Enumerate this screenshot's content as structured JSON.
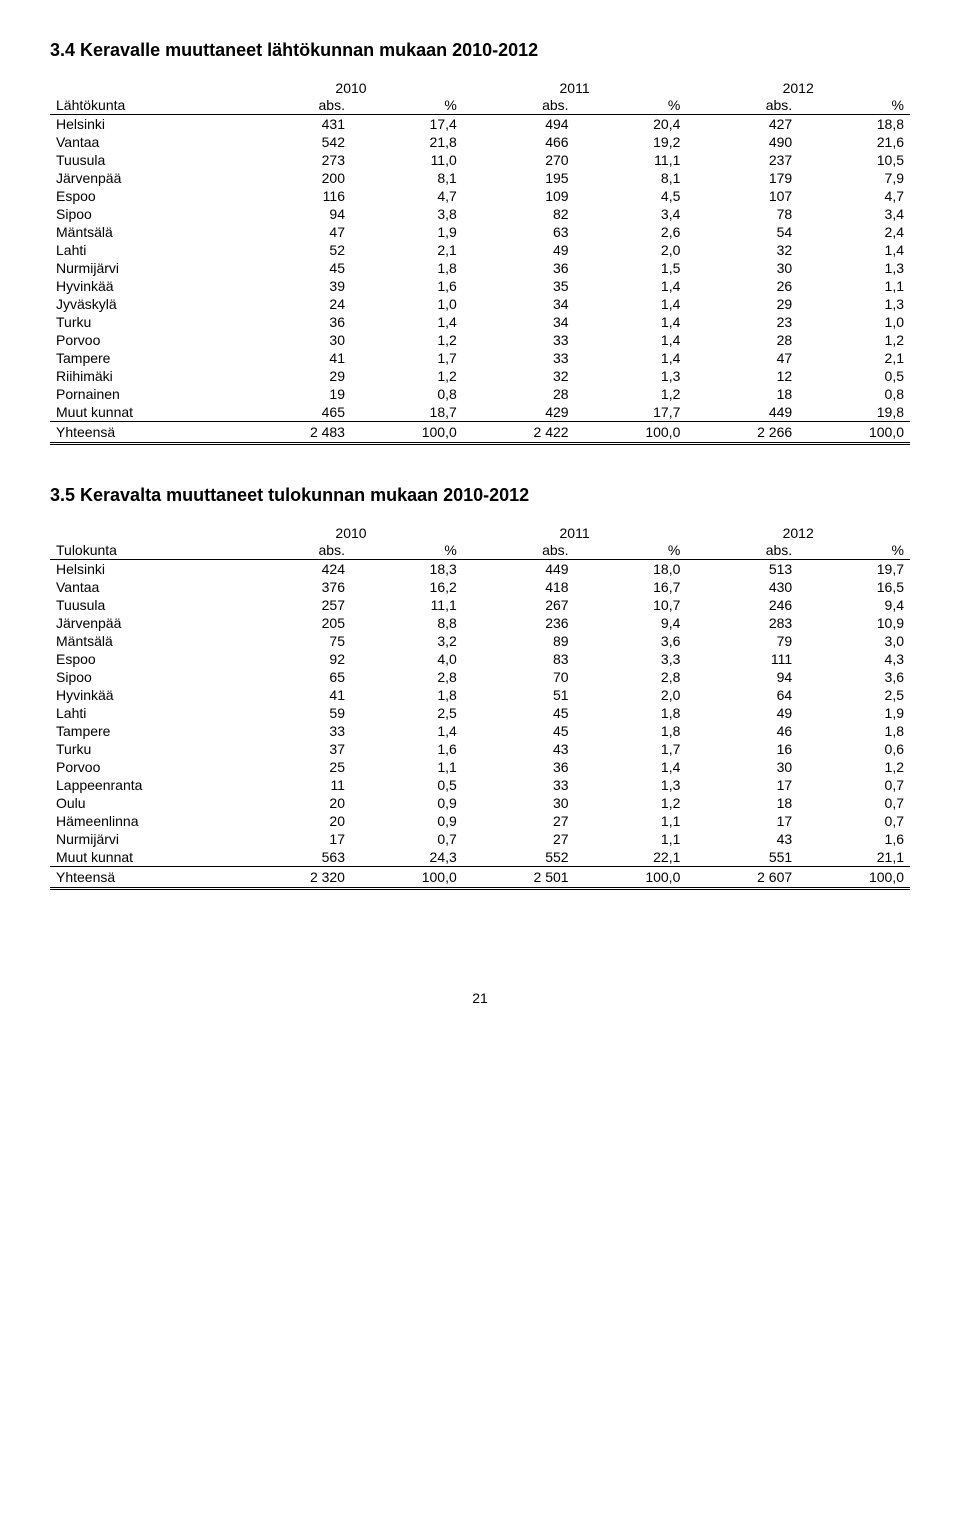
{
  "section1": {
    "title": "3.4 Keravalle muuttaneet lähtökunnan mukaan 2010-2012",
    "row_label": "Lähtökunta",
    "years": [
      "2010",
      "2011",
      "2012"
    ],
    "col_sub": [
      "abs.",
      "%"
    ],
    "rows": [
      {
        "name": "Helsinki",
        "v": [
          "431",
          "17,4",
          "494",
          "20,4",
          "427",
          "18,8"
        ]
      },
      {
        "name": "Vantaa",
        "v": [
          "542",
          "21,8",
          "466",
          "19,2",
          "490",
          "21,6"
        ]
      },
      {
        "name": "Tuusula",
        "v": [
          "273",
          "11,0",
          "270",
          "11,1",
          "237",
          "10,5"
        ]
      },
      {
        "name": "Järvenpää",
        "v": [
          "200",
          "8,1",
          "195",
          "8,1",
          "179",
          "7,9"
        ]
      },
      {
        "name": "Espoo",
        "v": [
          "116",
          "4,7",
          "109",
          "4,5",
          "107",
          "4,7"
        ]
      },
      {
        "name": "Sipoo",
        "v": [
          "94",
          "3,8",
          "82",
          "3,4",
          "78",
          "3,4"
        ]
      },
      {
        "name": "Mäntsälä",
        "v": [
          "47",
          "1,9",
          "63",
          "2,6",
          "54",
          "2,4"
        ]
      },
      {
        "name": "Lahti",
        "v": [
          "52",
          "2,1",
          "49",
          "2,0",
          "32",
          "1,4"
        ]
      },
      {
        "name": "Nurmijärvi",
        "v": [
          "45",
          "1,8",
          "36",
          "1,5",
          "30",
          "1,3"
        ]
      },
      {
        "name": "Hyvinkää",
        "v": [
          "39",
          "1,6",
          "35",
          "1,4",
          "26",
          "1,1"
        ]
      },
      {
        "name": "Jyväskylä",
        "v": [
          "24",
          "1,0",
          "34",
          "1,4",
          "29",
          "1,3"
        ]
      },
      {
        "name": "Turku",
        "v": [
          "36",
          "1,4",
          "34",
          "1,4",
          "23",
          "1,0"
        ]
      },
      {
        "name": "Porvoo",
        "v": [
          "30",
          "1,2",
          "33",
          "1,4",
          "28",
          "1,2"
        ]
      },
      {
        "name": "Tampere",
        "v": [
          "41",
          "1,7",
          "33",
          "1,4",
          "47",
          "2,1"
        ]
      },
      {
        "name": "Riihimäki",
        "v": [
          "29",
          "1,2",
          "32",
          "1,3",
          "12",
          "0,5"
        ]
      },
      {
        "name": "Pornainen",
        "v": [
          "19",
          "0,8",
          "28",
          "1,2",
          "18",
          "0,8"
        ]
      },
      {
        "name": "Muut kunnat",
        "v": [
          "465",
          "18,7",
          "429",
          "17,7",
          "449",
          "19,8"
        ]
      }
    ],
    "total": {
      "name": "Yhteensä",
      "v": [
        "2 483",
        "100,0",
        "2 422",
        "100,0",
        "2 266",
        "100,0"
      ]
    }
  },
  "section2": {
    "title": "3.5 Keravalta muuttaneet tulokunnan mukaan 2010-2012",
    "row_label": "Tulokunta",
    "years": [
      "2010",
      "2011",
      "2012"
    ],
    "col_sub": [
      "abs.",
      "%"
    ],
    "rows": [
      {
        "name": "Helsinki",
        "v": [
          "424",
          "18,3",
          "449",
          "18,0",
          "513",
          "19,7"
        ]
      },
      {
        "name": "Vantaa",
        "v": [
          "376",
          "16,2",
          "418",
          "16,7",
          "430",
          "16,5"
        ]
      },
      {
        "name": "Tuusula",
        "v": [
          "257",
          "11,1",
          "267",
          "10,7",
          "246",
          "9,4"
        ]
      },
      {
        "name": "Järvenpää",
        "v": [
          "205",
          "8,8",
          "236",
          "9,4",
          "283",
          "10,9"
        ]
      },
      {
        "name": "Mäntsälä",
        "v": [
          "75",
          "3,2",
          "89",
          "3,6",
          "79",
          "3,0"
        ]
      },
      {
        "name": "Espoo",
        "v": [
          "92",
          "4,0",
          "83",
          "3,3",
          "111",
          "4,3"
        ]
      },
      {
        "name": "Sipoo",
        "v": [
          "65",
          "2,8",
          "70",
          "2,8",
          "94",
          "3,6"
        ]
      },
      {
        "name": "Hyvinkää",
        "v": [
          "41",
          "1,8",
          "51",
          "2,0",
          "64",
          "2,5"
        ]
      },
      {
        "name": "Lahti",
        "v": [
          "59",
          "2,5",
          "45",
          "1,8",
          "49",
          "1,9"
        ]
      },
      {
        "name": "Tampere",
        "v": [
          "33",
          "1,4",
          "45",
          "1,8",
          "46",
          "1,8"
        ]
      },
      {
        "name": "Turku",
        "v": [
          "37",
          "1,6",
          "43",
          "1,7",
          "16",
          "0,6"
        ]
      },
      {
        "name": "Porvoo",
        "v": [
          "25",
          "1,1",
          "36",
          "1,4",
          "30",
          "1,2"
        ]
      },
      {
        "name": "Lappeenranta",
        "v": [
          "11",
          "0,5",
          "33",
          "1,3",
          "17",
          "0,7"
        ]
      },
      {
        "name": "Oulu",
        "v": [
          "20",
          "0,9",
          "30",
          "1,2",
          "18",
          "0,7"
        ]
      },
      {
        "name": "Hämeenlinna",
        "v": [
          "20",
          "0,9",
          "27",
          "1,1",
          "17",
          "0,7"
        ]
      },
      {
        "name": "Nurmijärvi",
        "v": [
          "17",
          "0,7",
          "27",
          "1,1",
          "43",
          "1,6"
        ]
      },
      {
        "name": "Muut kunnat",
        "v": [
          "563",
          "24,3",
          "552",
          "22,1",
          "551",
          "21,1"
        ]
      }
    ],
    "total": {
      "name": "Yhteensä",
      "v": [
        "2 320",
        "100,0",
        "2 501",
        "100,0",
        "2 607",
        "100,0"
      ]
    }
  },
  "page_number": "21"
}
